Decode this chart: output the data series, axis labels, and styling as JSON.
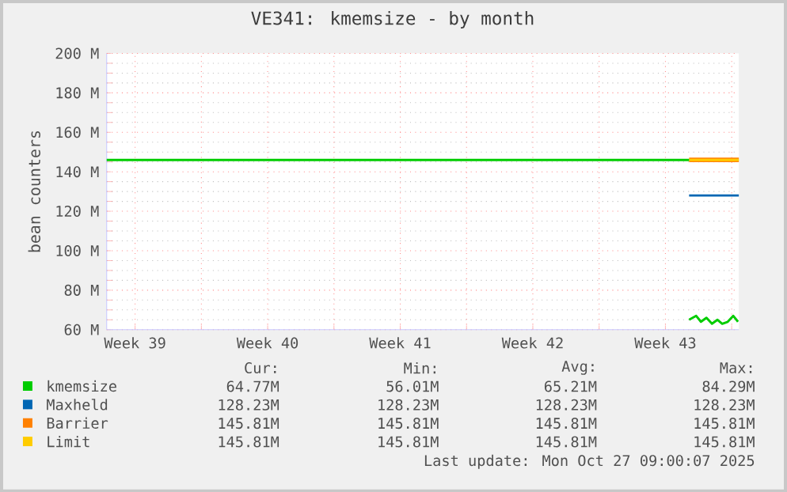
{
  "chart_data": {
    "type": "line",
    "title": "VE341: kmemsize - by month",
    "ylabel": "bean counters",
    "xlim": [
      "2025-09-24T00:00",
      "2025-10-27T09:00"
    ],
    "ylim": [
      60,
      200
    ],
    "xticks": [
      {
        "value": "2025-09-25T12:00",
        "label": "Week 39"
      },
      {
        "value": "2025-09-29",
        "label": null
      },
      {
        "value": "2025-10-02T12:00",
        "label": "Week 40"
      },
      {
        "value": "2025-10-06",
        "label": null
      },
      {
        "value": "2025-10-09T12:00",
        "label": "Week 41"
      },
      {
        "value": "2025-10-13",
        "label": null
      },
      {
        "value": "2025-10-16T12:00",
        "label": "Week 42"
      },
      {
        "value": "2025-10-20",
        "label": null
      },
      {
        "value": "2025-10-23T12:00",
        "label": "Week 43"
      },
      {
        "value": "2025-10-27",
        "label": null
      }
    ],
    "yticks": [
      {
        "value": 60,
        "label": "60 M"
      },
      {
        "value": 80,
        "label": "80 M"
      },
      {
        "value": 100,
        "label": "100 M"
      },
      {
        "value": 120,
        "label": "120 M"
      },
      {
        "value": 140,
        "label": "140 M"
      },
      {
        "value": 160,
        "label": "160 M"
      },
      {
        "value": 180,
        "label": "180 M"
      },
      {
        "value": 200,
        "label": "200 M"
      }
    ],
    "grid": true,
    "legend": "bottom",
    "series": [
      {
        "name": "kmemsize",
        "color": "#00cc00",
        "x": [
          "2025-10-24T18:00",
          "2025-10-25T03:00",
          "2025-10-25T09:00",
          "2025-10-25T16:00",
          "2025-10-25T23:00",
          "2025-10-26T06:00",
          "2025-10-26T12:00",
          "2025-10-26T19:00",
          "2025-10-27T02:00",
          "2025-10-27T08:00"
        ],
        "values": [
          65,
          67,
          64,
          66,
          63,
          65,
          63,
          64,
          67,
          64
        ]
      },
      {
        "name": "Maxheld",
        "color": "#0066b3",
        "x": [
          "2025-10-24T18:00",
          "2025-10-27T09:00"
        ],
        "values": [
          128,
          128
        ]
      },
      {
        "name": "Barrier",
        "color": "#ff8000",
        "x": [
          "2025-10-24T18:00",
          "2025-10-27T09:00"
        ],
        "values": [
          146,
          146
        ]
      },
      {
        "name": "Limit",
        "color": "#ffcc00",
        "x": [
          "2025-10-24T18:00",
          "2025-10-27T09:00"
        ],
        "values": [
          146,
          146
        ]
      },
      {
        "color": "#00cc00",
        "x": [
          "2025-09-24T00:00",
          "2025-10-24T18:00"
        ],
        "values": [
          146,
          146
        ]
      }
    ],
    "annotations": [
      "Cur:",
      "Min:",
      "Avg:",
      "Max:",
      "64.77M",
      "56.01M",
      "65.21M",
      "84.29M",
      "128.23M",
      "128.23M",
      "128.23M",
      "128.23M",
      "145.81M",
      "145.81M",
      "145.81M",
      "145.81M",
      "145.81M",
      "145.81M",
      "145.81M",
      "145.81M",
      "Last update: Mon Oct 27 09:00:07 2025"
    ]
  }
}
